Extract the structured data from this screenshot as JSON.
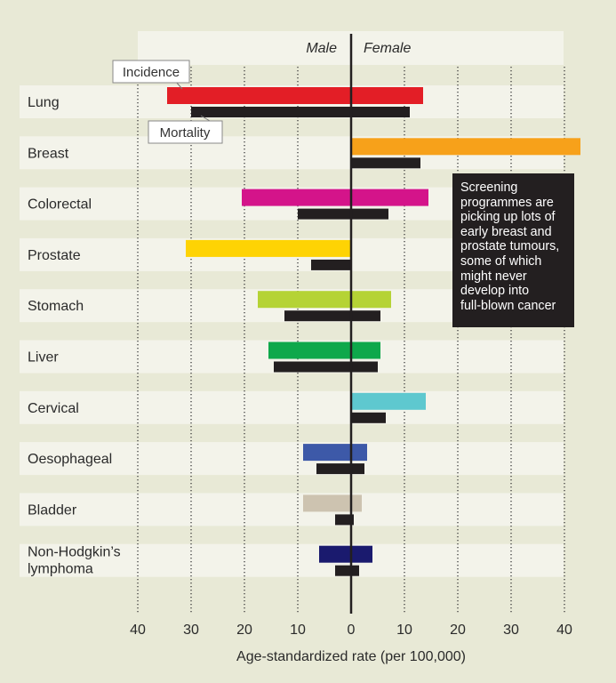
{
  "chart_data": {
    "type": "bar",
    "orientation": "horizontal-diverging",
    "title": "",
    "header": {
      "left": "Male",
      "right": "Female"
    },
    "xlabel": "Age-standardized rate (per 100,000)",
    "x_ticks": [
      40,
      30,
      20,
      10,
      0,
      10,
      20,
      30,
      40
    ],
    "xlim": [
      -40,
      40
    ],
    "categories": [
      [
        "Lung"
      ],
      [
        "Breast"
      ],
      [
        "Colorectal"
      ],
      [
        "Prostate"
      ],
      [
        "Stomach"
      ],
      [
        "Liver"
      ],
      [
        "Cervical"
      ],
      [
        "Oesophageal"
      ],
      [
        "Bladder"
      ],
      [
        "Non-Hodgkin’s",
        "lymphoma"
      ]
    ],
    "series": [
      {
        "name": "Incidence",
        "male": [
          34.5,
          0,
          20.5,
          31,
          17.5,
          15.5,
          0,
          9,
          9,
          6
        ],
        "female": [
          13.5,
          43,
          14.5,
          0,
          7.5,
          5.5,
          14,
          3,
          2,
          4
        ],
        "colors": [
          "#e31e26",
          "#f7a11a",
          "#d4148a",
          "#fed304",
          "#b5d335",
          "#0ea84b",
          "#5ec8cf",
          "#3d59a8",
          "#cdc3b0",
          "#1a1a6e"
        ]
      },
      {
        "name": "Mortality",
        "male": [
          30,
          0,
          10,
          7.5,
          12.5,
          14.5,
          0,
          6.5,
          3,
          3
        ],
        "female": [
          11,
          13,
          7,
          0,
          5.5,
          5,
          6.5,
          2.5,
          0.5,
          1.5
        ],
        "color": "#231f20"
      }
    ],
    "annotations": [
      "Incidence",
      "Mortality"
    ],
    "note": [
      "Screening",
      "programmes are",
      "picking up lots of",
      "early breast and",
      "prostate tumours,",
      "some of which",
      "might never",
      "develop into",
      "full-blown cancer"
    ]
  }
}
